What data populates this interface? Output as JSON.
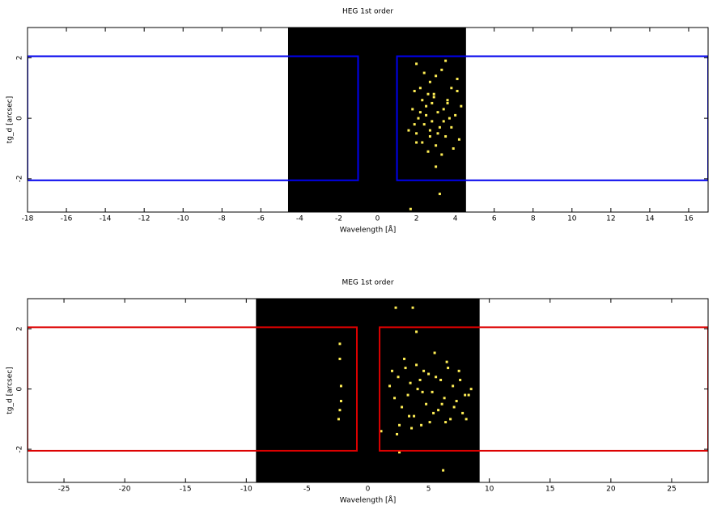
{
  "chart_data": [
    {
      "type": "scatter",
      "title": "HEG 1st order",
      "xlabel": "Wavelength [Å]",
      "ylabel": "tg_d [arcsec]",
      "xlim": [
        -18,
        17
      ],
      "ylim": [
        -3.1,
        3.0
      ],
      "xticks": [
        -18,
        -16,
        -14,
        -12,
        -10,
        -8,
        -6,
        -4,
        -2,
        0,
        2,
        4,
        6,
        8,
        10,
        12,
        14,
        16
      ],
      "yticks": [
        -2,
        0,
        2
      ],
      "image_x": [
        -4.6,
        4.55
      ],
      "region_color": "#0000ee",
      "regions": [
        {
          "x": [
            -18,
            -1.0
          ],
          "y": [
            -2.05,
            2.05
          ]
        },
        {
          "x": [
            1.0,
            17
          ],
          "y": [
            -2.05,
            2.05
          ]
        }
      ],
      "color": "#ffee55",
      "x": [
        2.0,
        2.4,
        3.5,
        2.7,
        2.2,
        3.0,
        3.3,
        4.1,
        1.9,
        2.6,
        3.8,
        2.3,
        2.9,
        3.6,
        4.3,
        1.8,
        2.5,
        3.1,
        3.4,
        4.0,
        2.1,
        2.8,
        3.7,
        2.4,
        3.2,
        1.6,
        2.0,
        2.7,
        3.5,
        4.2,
        2.3,
        3.0,
        3.9,
        2.6,
        3.3,
        1.9,
        2.5,
        3.6,
        4.1,
        2.8,
        3.1,
        2.2,
        3.4,
        2.9,
        3.8,
        2.0,
        2.7,
        3.0,
        3.2,
        1.7
      ],
      "values": [
        1.8,
        1.5,
        1.9,
        1.2,
        1.0,
        1.4,
        1.6,
        1.3,
        0.9,
        0.8,
        1.0,
        0.6,
        0.7,
        0.5,
        0.4,
        0.3,
        0.4,
        0.2,
        0.3,
        0.1,
        0.0,
        -0.1,
        0.0,
        -0.2,
        -0.3,
        -0.4,
        -0.5,
        -0.4,
        -0.6,
        -0.7,
        -0.8,
        -0.9,
        -1.0,
        -1.1,
        -1.2,
        -0.2,
        0.1,
        0.6,
        0.9,
        0.5,
        -0.5,
        0.2,
        -0.1,
        0.8,
        -0.3,
        -0.8,
        -0.6,
        -1.6,
        -2.5,
        -3.0
      ]
    },
    {
      "type": "scatter",
      "title": "MEG 1st order",
      "xlabel": "Wavelength [Å]",
      "ylabel": "tg_d [arcsec]",
      "xlim": [
        -28,
        28
      ],
      "ylim": [
        -3.1,
        3.0
      ],
      "xticks": [
        -25,
        -20,
        -15,
        -10,
        -5,
        0,
        5,
        10,
        15,
        20,
        25
      ],
      "yticks": [
        -2,
        0,
        2
      ],
      "image_x": [
        -9.2,
        9.2
      ],
      "region_color": "#dd0000",
      "regions": [
        {
          "x": [
            -28,
            -0.9
          ],
          "y": [
            -2.05,
            2.05
          ]
        },
        {
          "x": [
            0.97,
            28
          ],
          "y": [
            -2.05,
            2.05
          ]
        }
      ],
      "color": "#ffee55",
      "x": [
        -2.3,
        -2.3,
        -2.2,
        -2.2,
        -2.3,
        -2.4,
        2.0,
        2.5,
        3.0,
        3.5,
        4.0,
        4.5,
        5.0,
        5.5,
        6.0,
        6.5,
        7.0,
        7.5,
        8.0,
        8.5,
        2.2,
        2.8,
        3.3,
        3.8,
        4.3,
        4.8,
        5.3,
        5.8,
        6.3,
        6.8,
        7.3,
        7.8,
        8.3,
        1.8,
        2.6,
        3.1,
        3.6,
        4.1,
        4.6,
        5.1,
        5.6,
        6.1,
        6.6,
        7.1,
        7.6,
        8.1,
        1.1,
        2.4,
        3.4,
        4.4,
        5.4,
        6.4,
        2.3,
        3.7,
        4.0,
        6.2,
        2.6
      ],
      "values": [
        1.5,
        1.0,
        0.1,
        -0.4,
        -0.7,
        -1.0,
        0.6,
        0.4,
        1.0,
        0.2,
        0.8,
        -0.1,
        0.5,
        1.2,
        0.3,
        0.9,
        0.1,
        0.6,
        -0.2,
        0.0,
        -0.3,
        -0.6,
        -0.2,
        -0.9,
        0.3,
        -0.5,
        -0.1,
        -0.7,
        -0.3,
        -1.0,
        -0.4,
        -0.8,
        -0.2,
        0.1,
        -1.2,
        0.7,
        -1.3,
        0.0,
        0.6,
        -1.1,
        0.4,
        -0.5,
        0.7,
        -0.6,
        0.3,
        -1.0,
        -1.4,
        -1.5,
        -0.9,
        -1.2,
        -0.8,
        -1.1,
        2.7,
        2.7,
        1.9,
        -2.7,
        -2.1
      ]
    }
  ]
}
